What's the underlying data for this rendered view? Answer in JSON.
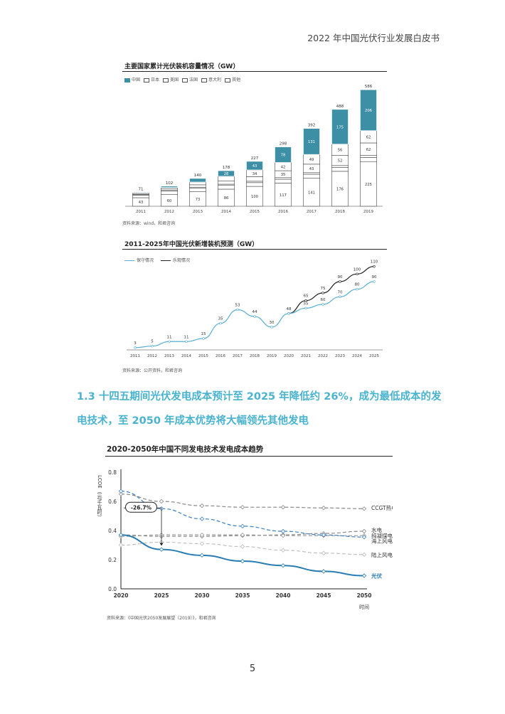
{
  "header": {
    "title": "2022 年中国光伏行业发展白皮书"
  },
  "colors": {
    "accent": "#3d8fa6",
    "heading": "#4ab3cf",
    "line_conservative": "#5aaed6",
    "line_optimistic": "#222222"
  },
  "chart1": {
    "title": "主要国家累计光伏装机容量情况（GW）",
    "source": "资料来源：wind，和君咨询",
    "chart_data": {
      "type": "bar",
      "stacked": true,
      "categories": [
        "2011",
        "2012",
        "2013",
        "2014",
        "2015",
        "2016",
        "2017",
        "2018",
        "2019"
      ],
      "series": [
        {
          "name": "中国",
          "values": [
            3,
            7,
            18,
            28,
            43,
            78,
            131,
            175,
            206
          ]
        },
        {
          "name": "日本",
          "values": [
            5,
            7,
            14,
            23,
            34,
            42,
            49,
            56,
            62
          ]
        },
        {
          "name": "美国",
          "values": [
            3,
            7,
            12,
            17,
            23,
            35,
            43,
            52,
            62
          ]
        },
        {
          "name": "法国",
          "values": [
            3,
            4,
            5,
            6,
            7,
            8,
            8,
            9,
            11
          ]
        },
        {
          "name": "意大利",
          "values": [
            13,
            16,
            18,
            19,
            19,
            19,
            20,
            20,
            21
          ]
        },
        {
          "name": "其他",
          "values": [
            43,
            60,
            73,
            86,
            100,
            117,
            141,
            176,
            225
          ]
        }
      ],
      "totals": [
        71,
        102,
        140,
        178,
        227,
        298,
        392,
        488,
        586
      ],
      "ylim": [
        0,
        620
      ],
      "legend": "top-left"
    }
  },
  "chart2": {
    "title": "2011-2025年中国光伏新增装机预测（GW）",
    "source": "资料来源：公开资料，和君咨询",
    "chart_data": {
      "type": "line",
      "x": [
        "2011",
        "2012",
        "2013",
        "2014",
        "2015",
        "2016",
        "2017",
        "2018",
        "2019",
        "2020",
        "2021",
        "2022",
        "2023",
        "2024",
        "2025"
      ],
      "series": [
        {
          "name": "保守情况",
          "values": [
            3,
            5,
            11,
            11,
            15,
            35,
            53,
            44,
            30,
            48,
            55,
            60,
            70,
            80,
            90
          ]
        },
        {
          "name": "乐观情况",
          "values": [
            null,
            null,
            null,
            null,
            null,
            null,
            null,
            null,
            null,
            48,
            65,
            75,
            90,
            100,
            110
          ]
        }
      ],
      "ylim": [
        0,
        120
      ],
      "legend": "top-left"
    }
  },
  "section": {
    "heading": "1.3 十四五期间光伏发电成本预计至 2025 年降低约 26%，成为最低成本的发电技术，至 2050 年成本优势将大幅领先其他发电"
  },
  "chart3": {
    "title": "2020-2050年中国不同发电技术发电成本趋势",
    "ylabel": "LCOE（元/千瓦时）",
    "xlabel": "时间",
    "annotation": "-26.7%",
    "source": "资料来源：《中国光伏2050发展展望（2019）》，和君咨询",
    "chart_data": {
      "type": "line",
      "x": [
        2020,
        2025,
        2030,
        2035,
        2040,
        2045,
        2050
      ],
      "series": [
        {
          "name": "CCGT热电联产",
          "values": [
            0.65,
            0.6,
            0.57,
            0.56,
            0.56,
            0.555,
            0.55
          ]
        },
        {
          "name": "水电",
          "values": [
            0.37,
            0.36,
            0.36,
            0.365,
            0.37,
            0.38,
            0.395
          ]
        },
        {
          "name": "纯凝煤电",
          "values": [
            0.36,
            0.37,
            0.37,
            0.37,
            0.365,
            0.365,
            0.365
          ]
        },
        {
          "name": "海上风电",
          "values": [
            0.67,
            0.55,
            0.48,
            0.43,
            0.395,
            0.37,
            0.355
          ]
        },
        {
          "name": "陆上风电",
          "values": [
            0.3,
            0.32,
            0.31,
            0.29,
            0.265,
            0.245,
            0.235
          ]
        },
        {
          "name": "光伏",
          "values": [
            0.37,
            0.27,
            0.23,
            0.19,
            0.16,
            0.12,
            0.09
          ]
        }
      ],
      "yticks": [
        "0.0",
        "0.2",
        "0.4",
        "0.6",
        "0.8"
      ],
      "ylim": [
        0,
        0.8
      ],
      "legend": "right"
    }
  },
  "footer": {
    "page_number": "5"
  }
}
